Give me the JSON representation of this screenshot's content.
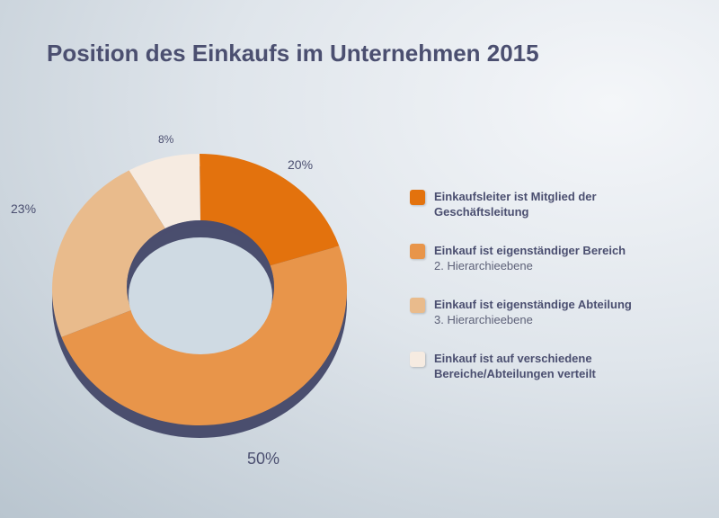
{
  "chart_data": {
    "type": "pie",
    "variant": "donut",
    "title": "Position des Einkaufs im Unternehmen 2015",
    "slices": [
      {
        "label": "Einkaufsleiter ist Mitglied der Geschäftsleitung",
        "sublabel": "",
        "value": 20,
        "value_label": "20%",
        "color": "#e3720d"
      },
      {
        "label": "Einkauf ist eigenständiger Bereich",
        "sublabel": "2. Hierarchieebene",
        "value": 50,
        "value_label": "50%",
        "color": "#e8954a"
      },
      {
        "label": "Einkauf ist eigenständige Abteilung",
        "sublabel": "3. Hierarchieebene",
        "value": 23,
        "value_label": "23%",
        "color": "#e9bb8c"
      },
      {
        "label": "Einkauf ist auf verschiedene Bereiche/Abteilungen verteilt",
        "sublabel": "",
        "value": 8,
        "value_label": "8%",
        "color": "#f6ebe1"
      }
    ],
    "legend": "right",
    "depth_color": "#4a4e6e"
  }
}
